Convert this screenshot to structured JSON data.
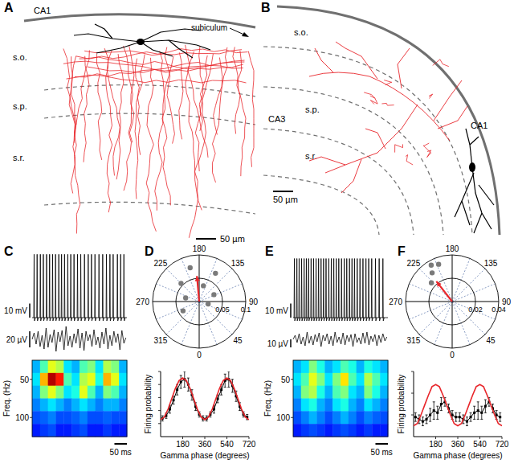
{
  "panels": {
    "A": {
      "label": "A",
      "region": "CA1",
      "subiculum": "subiculum",
      "layers": [
        "s.o.",
        "s.p.",
        "s.r."
      ],
      "scale_bar": {
        "value": 50,
        "label": "50 µm"
      }
    },
    "B": {
      "label": "B",
      "regions": [
        "CA3",
        "CA1"
      ],
      "layers": [
        "s.o.",
        "s.p.",
        "s.r."
      ],
      "scale_bar": {
        "value": 50,
        "label": "50 µm"
      }
    }
  },
  "chart_data": [
    {
      "type": "traces",
      "label": "C",
      "xlim": [
        0,
        380
      ],
      "spike_times": [
        8,
        20,
        33,
        45,
        58,
        70,
        82,
        94,
        107,
        118,
        130,
        143,
        155,
        168,
        182,
        195,
        210,
        225,
        238,
        252,
        268,
        283,
        298,
        312,
        325,
        342,
        355,
        368
      ],
      "spike_amplitude": 45,
      "voltage_scale": {
        "value": 10,
        "label": "10 mV"
      },
      "lfp": {
        "dt": 8,
        "values": [
          0,
          8,
          -6,
          10,
          -9,
          5,
          -12,
          14,
          -10,
          6,
          -4,
          12,
          -15,
          9,
          -3,
          11,
          -13,
          16,
          -8,
          4,
          -10,
          7,
          -5,
          13,
          -11,
          8,
          -14,
          10,
          -2,
          6,
          -9,
          12,
          -7,
          3,
          -11,
          9,
          -6,
          14,
          -12,
          5,
          -8,
          10,
          -4,
          7,
          -13,
          11,
          -5,
          2
        ]
      },
      "lfp_scale": {
        "value": 20,
        "label": "20 µV"
      },
      "spectrogram": {
        "ylabel": "Freq. (Hz)",
        "ylim": [
          25,
          125
        ],
        "yticks": [
          50,
          100
        ],
        "cells": [
          [
            0.3,
            0.45,
            0.6,
            0.55,
            0.35,
            0.3,
            0.45,
            0.5,
            0.35,
            0.55,
            0.5,
            0.3
          ],
          [
            0.35,
            0.7,
            0.95,
            0.85,
            0.45,
            0.35,
            0.55,
            0.6,
            0.4,
            0.7,
            0.6,
            0.35
          ],
          [
            0.3,
            0.5,
            0.6,
            0.5,
            0.35,
            0.4,
            0.6,
            0.45,
            0.3,
            0.5,
            0.45,
            0.3
          ],
          [
            0.25,
            0.3,
            0.35,
            0.3,
            0.25,
            0.3,
            0.35,
            0.3,
            0.25,
            0.3,
            0.3,
            0.25
          ],
          [
            0.2,
            0.22,
            0.25,
            0.2,
            0.2,
            0.22,
            0.25,
            0.2,
            0.2,
            0.22,
            0.2,
            0.2
          ],
          [
            0.15,
            0.18,
            0.2,
            0.15,
            0.15,
            0.18,
            0.2,
            0.15,
            0.15,
            0.18,
            0.15,
            0.15
          ]
        ]
      },
      "time_scale": {
        "value": 50,
        "label": "50 ms"
      }
    },
    {
      "type": "polar",
      "label": "D",
      "rlim": [
        0,
        0.1
      ],
      "rticks": [
        0.05,
        0.1
      ],
      "angle_ticks": [
        0,
        45,
        90,
        135,
        180,
        225,
        270,
        315
      ],
      "points": {
        "angles": [
          150,
          195,
          225,
          165,
          255,
          115,
          300,
          75
        ],
        "radii": [
          0.07,
          0.075,
          0.055,
          0.035,
          0.03,
          0.035,
          0.04,
          0.02
        ],
        "color": "#7a7a7a"
      },
      "vector": {
        "angle": 185,
        "radius": 0.055,
        "color": "#e8262b"
      }
    },
    {
      "type": "line",
      "xlabel": "Gamma phase (degrees)",
      "ylabel": "Firing probability",
      "xlim": [
        0,
        720
      ],
      "xticks": [
        180,
        360,
        540,
        720
      ],
      "ylim": [
        0,
        0.05
      ],
      "yticks": [
        0.01,
        0.02,
        0.03,
        0.04,
        0.05
      ],
      "tick_labels": "x",
      "series": [
        {
          "x": [
            15,
            45,
            75,
            105,
            135,
            165,
            195,
            225,
            255,
            285,
            315,
            345,
            375,
            405,
            435,
            465,
            495,
            525,
            555,
            585,
            615,
            645,
            675,
            705
          ],
          "values": [
            0.014,
            0.016,
            0.021,
            0.028,
            0.036,
            0.042,
            0.044,
            0.04,
            0.032,
            0.023,
            0.017,
            0.014,
            0.014,
            0.017,
            0.021,
            0.029,
            0.036,
            0.043,
            0.044,
            0.039,
            0.031,
            0.023,
            0.017,
            0.015
          ],
          "errors": [
            0.002,
            0.002,
            0.003,
            0.003,
            0.004,
            0.005,
            0.006,
            0.005,
            0.004,
            0.003,
            0.002,
            0.002,
            0.002,
            0.002,
            0.003,
            0.003,
            0.004,
            0.005,
            0.006,
            0.005,
            0.004,
            0.003,
            0.002,
            0.002
          ],
          "color": "#000000",
          "marker": "square"
        },
        {
          "x": [
            0,
            30,
            60,
            90,
            120,
            150,
            180,
            210,
            240,
            270,
            300,
            330,
            360,
            390,
            420,
            450,
            480,
            510,
            540,
            570,
            600,
            630,
            660,
            690,
            720
          ],
          "values": [
            0.013,
            0.015,
            0.021,
            0.029,
            0.037,
            0.043,
            0.045,
            0.043,
            0.037,
            0.029,
            0.021,
            0.015,
            0.013,
            0.015,
            0.021,
            0.029,
            0.037,
            0.043,
            0.045,
            0.043,
            0.037,
            0.029,
            0.021,
            0.015,
            0.013
          ],
          "color": "#e8262b",
          "line_style": "solid"
        }
      ]
    },
    {
      "type": "traces",
      "label": "E",
      "xlim": [
        0,
        380
      ],
      "spike_times": [
        5,
        15,
        24,
        34,
        44,
        53,
        62,
        72,
        82,
        92,
        102,
        112,
        122,
        132,
        143,
        153,
        163,
        173,
        183,
        194,
        205,
        215,
        226,
        236,
        246,
        257,
        268,
        280,
        292,
        303,
        315,
        330,
        345,
        360
      ],
      "spike_amplitude": 42,
      "voltage_scale": {
        "value": 10,
        "label": "10 mV"
      },
      "lfp": {
        "dt": 8,
        "values": [
          0,
          5,
          -4,
          7,
          -6,
          3,
          -8,
          9,
          -5,
          4,
          -7,
          6,
          -3,
          8,
          -9,
          5,
          -2,
          7,
          -6,
          4,
          -8,
          9,
          -4,
          3,
          -6,
          8,
          -7,
          5,
          -3,
          6,
          -9,
          7,
          -4,
          2,
          -6,
          8,
          -5,
          9,
          -7,
          4,
          -3,
          6,
          -8,
          5,
          -4,
          7,
          -2,
          3
        ]
      },
      "lfp_scale": {
        "value": 10,
        "label": "10 µV"
      },
      "spectrogram": {
        "ylabel": "Freq. (Hz)",
        "ylim": [
          25,
          125
        ],
        "yticks": [
          50,
          100
        ],
        "cells": [
          [
            0.3,
            0.35,
            0.5,
            0.4,
            0.3,
            0.35,
            0.45,
            0.4,
            0.3,
            0.4,
            0.35,
            0.3
          ],
          [
            0.35,
            0.45,
            0.6,
            0.5,
            0.35,
            0.5,
            0.65,
            0.45,
            0.35,
            0.55,
            0.45,
            0.35
          ],
          [
            0.3,
            0.5,
            0.55,
            0.4,
            0.3,
            0.45,
            0.5,
            0.35,
            0.3,
            0.5,
            0.4,
            0.3
          ],
          [
            0.25,
            0.35,
            0.4,
            0.3,
            0.25,
            0.35,
            0.4,
            0.3,
            0.25,
            0.35,
            0.3,
            0.25
          ],
          [
            0.2,
            0.25,
            0.3,
            0.25,
            0.2,
            0.25,
            0.3,
            0.25,
            0.2,
            0.25,
            0.22,
            0.2
          ],
          [
            0.15,
            0.18,
            0.2,
            0.18,
            0.15,
            0.18,
            0.2,
            0.18,
            0.15,
            0.18,
            0.15,
            0.15
          ]
        ]
      },
      "time_scale": {
        "value": 50,
        "label": "50 ms"
      }
    },
    {
      "type": "polar",
      "label": "F",
      "rlim": [
        0,
        0.04
      ],
      "rticks": [
        0.02,
        0.04
      ],
      "angle_ticks": [
        0,
        45,
        90,
        135,
        180,
        225,
        270,
        315
      ],
      "points": {
        "angles": [
          215,
          228,
          200,
          210
        ],
        "radii": [
          0.03,
          0.024,
          0.034,
          0.036
        ],
        "color": "#7a7a7a"
      },
      "vector": {
        "angle": 218,
        "radius": 0.022,
        "color": "#e8262b"
      }
    },
    {
      "type": "line",
      "xlabel": "Gamma phase (degrees)",
      "ylabel": "Firing probability",
      "xlim": [
        0,
        720
      ],
      "xticks": [
        180,
        360,
        540,
        720
      ],
      "ylim": [
        0,
        0.03
      ],
      "yticks": [
        0.01,
        0.02,
        0.03
      ],
      "tick_labels": "x",
      "series": [
        {
          "x": [
            15,
            45,
            75,
            105,
            135,
            165,
            195,
            225,
            255,
            285,
            315,
            345,
            375,
            405,
            435,
            465,
            495,
            525,
            555,
            585,
            615,
            645,
            675,
            705
          ],
          "values": [
            0.009,
            0.008,
            0.007,
            0.008,
            0.01,
            0.012,
            0.011,
            0.015,
            0.016,
            0.013,
            0.01,
            0.009,
            0.009,
            0.008,
            0.007,
            0.009,
            0.011,
            0.012,
            0.011,
            0.014,
            0.016,
            0.013,
            0.01,
            0.009
          ],
          "errors": [
            0.002,
            0.002,
            0.002,
            0.002,
            0.003,
            0.004,
            0.003,
            0.003,
            0.002,
            0.002,
            0.002,
            0.002,
            0.002,
            0.002,
            0.002,
            0.002,
            0.003,
            0.004,
            0.003,
            0.003,
            0.002,
            0.002,
            0.002,
            0.002
          ],
          "color": "#000000",
          "marker": "square"
        },
        {
          "x": [
            0,
            30,
            60,
            90,
            120,
            150,
            180,
            210,
            240,
            270,
            300,
            330,
            360,
            390,
            420,
            450,
            480,
            510,
            540,
            570,
            600,
            630,
            660,
            690,
            720
          ],
          "values": [
            0.005,
            0.006,
            0.01,
            0.0145,
            0.019,
            0.023,
            0.024,
            0.023,
            0.019,
            0.0145,
            0.01,
            0.006,
            0.005,
            0.006,
            0.01,
            0.0145,
            0.019,
            0.023,
            0.024,
            0.023,
            0.019,
            0.0145,
            0.01,
            0.006,
            0.005
          ],
          "color": "#e8262b",
          "line_style": "solid"
        }
      ]
    }
  ]
}
